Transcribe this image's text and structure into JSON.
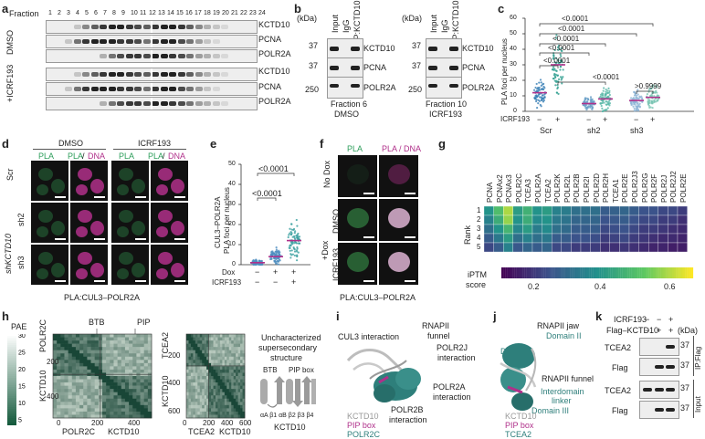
{
  "panel_a": {
    "label": "a",
    "fraction_label": "Fraction",
    "fractions": [
      "1",
      "2",
      "3",
      "4",
      "5",
      "6",
      "7",
      "8",
      "9",
      "10",
      "11",
      "12",
      "13",
      "14",
      "15",
      "16",
      "17",
      "18",
      "19",
      "20",
      "21",
      "22",
      "23",
      "24"
    ],
    "conditions": [
      "DMSO",
      "+ICRF193"
    ],
    "rows": [
      "KCTD10",
      "PCNA",
      "POLR2A"
    ]
  },
  "panel_b": {
    "label": "b",
    "kda": "(kDa)",
    "lanes": [
      "Input",
      "IgG",
      "IP:KCTD10"
    ],
    "markers": [
      "37",
      "37",
      "250"
    ],
    "rows": [
      "KCTD10",
      "PCNA",
      "POLR2A"
    ],
    "left_caption1": "Fraction 6",
    "left_caption2": "DMSO",
    "right_caption1": "Fraction 10",
    "right_caption2": "ICRF193"
  },
  "panel_c": {
    "label": "c",
    "ylabel": "PLA foci per nucleus",
    "yticks": [
      "0",
      "10",
      "20",
      "30",
      "40",
      "50",
      "60"
    ],
    "icrf_label": "ICRF193",
    "icrf_signs": [
      "−",
      "+",
      "−",
      "+",
      "−",
      "+"
    ],
    "groups": [
      "Scr",
      "sh2",
      "sh3"
    ],
    "pvalues": [
      "<0.0001",
      "<0.0001",
      "<0.0001",
      "<0.0001",
      "<0.0001",
      "<0.0001",
      ">0.9999"
    ]
  },
  "panel_d": {
    "label": "d",
    "cond": [
      "DMSO",
      "ICRF193"
    ],
    "cols": [
      "PLA",
      "PLA",
      "/",
      "DNA",
      "PLA",
      "PLA",
      "/",
      "DNA"
    ],
    "rows": [
      "Scr",
      "sh2",
      "sh3"
    ],
    "shgroup": "shKCTD10",
    "caption": "PLA:CUL3–POLR2A"
  },
  "panel_e": {
    "label": "e",
    "ylabel1": "CUL3–POLR2A",
    "ylabel2": "PLA foci per nucleus",
    "yticks": [
      "0",
      "10",
      "20",
      "30",
      "40",
      "50"
    ],
    "dox_label": "Dox",
    "icrf_label": "ICRF193",
    "dox_signs": [
      "−",
      "+",
      "+"
    ],
    "icrf_signs": [
      "−",
      "−",
      "+"
    ],
    "pvalues": [
      "<0.0001",
      "<0.0001"
    ]
  },
  "panel_f": {
    "label": "f",
    "cols": [
      "PLA",
      "PLA / DNA"
    ],
    "rows": [
      "No Dox",
      "DMSO",
      "ICRF193"
    ],
    "plus_dox": "+Dox",
    "caption": "PLA:CUL3–POLR2A"
  },
  "panel_g": {
    "label": "g",
    "ylabel": "Rank",
    "ranks": [
      "1",
      "2",
      "3",
      "4",
      "5"
    ],
    "colorbar_label": "iPTM",
    "colorbar_label2": "score",
    "colorbar_ticks": [
      "0.2",
      "0.4",
      "0.6"
    ]
  },
  "chart_data": {
    "type": "heatmap",
    "columns": [
      "PCNA",
      "PCNAx2",
      "PCNAx3",
      "POLR2C",
      "TCEA3",
      "POLR2A",
      "TCEA2",
      "POLR2K",
      "POLR2L",
      "POLR2B",
      "POLR2I",
      "POLR2D",
      "POLR2H",
      "TCEA1",
      "POLR2E",
      "POLR2J3",
      "POLR2G",
      "POLR2F",
      "POLR2J",
      "POLR2J2",
      "POLR2E"
    ],
    "rows": [
      "1",
      "2",
      "3",
      "4",
      "5"
    ],
    "values": [
      [
        0.38,
        0.48,
        0.58,
        0.4,
        0.45,
        0.38,
        0.4,
        0.34,
        0.33,
        0.3,
        0.3,
        0.3,
        0.26,
        0.27,
        0.28,
        0.26,
        0.24,
        0.24,
        0.22,
        0.22,
        0.2
      ],
      [
        0.34,
        0.44,
        0.56,
        0.38,
        0.44,
        0.36,
        0.38,
        0.32,
        0.31,
        0.28,
        0.28,
        0.28,
        0.24,
        0.25,
        0.26,
        0.24,
        0.22,
        0.22,
        0.2,
        0.2,
        0.18
      ],
      [
        0.3,
        0.38,
        0.46,
        0.35,
        0.4,
        0.33,
        0.36,
        0.3,
        0.29,
        0.26,
        0.26,
        0.26,
        0.22,
        0.23,
        0.24,
        0.22,
        0.2,
        0.2,
        0.19,
        0.18,
        0.17
      ],
      [
        0.26,
        0.32,
        0.4,
        0.3,
        0.34,
        0.3,
        0.32,
        0.26,
        0.26,
        0.24,
        0.24,
        0.23,
        0.2,
        0.21,
        0.22,
        0.2,
        0.19,
        0.18,
        0.17,
        0.17,
        0.16
      ],
      [
        0.22,
        0.26,
        0.34,
        0.25,
        0.28,
        0.26,
        0.28,
        0.22,
        0.22,
        0.2,
        0.2,
        0.2,
        0.18,
        0.18,
        0.19,
        0.18,
        0.17,
        0.16,
        0.16,
        0.15,
        0.15
      ]
    ],
    "vmin": 0.1,
    "vmax": 0.65
  },
  "panel_h": {
    "label": "h",
    "pae_label": "PAE",
    "pae_ticks": [
      "30",
      "25",
      "20",
      "15",
      "10",
      "5"
    ],
    "left_y_top": "POLR2C",
    "left_y_bottom": "KCTD10",
    "left_x": [
      "POLR2C",
      "KCTD10"
    ],
    "left_yticks": [
      "200",
      "400"
    ],
    "left_xticks": [
      "0",
      "200",
      "400"
    ],
    "btb": "BTB",
    "pip": "PIP",
    "right_y_top": "TCEA2",
    "right_y_bottom": "KCTD10",
    "right_x": [
      "TCEA2",
      "KCTD10"
    ],
    "right_yticks": [
      "200",
      "400",
      "600"
    ],
    "right_xticks": [
      "0",
      "200",
      "400",
      "600"
    ],
    "struct_title": [
      "Uncharacterized",
      "supersecondary",
      "structure"
    ],
    "struct_btb": "BTB",
    "struct_pip": "PIP box",
    "struct_greek": "αA β1 αB β2 β3 β4",
    "struct_caption": "KCTD10"
  },
  "panel_i": {
    "label": "i",
    "annotations": [
      "CUL3 interaction",
      "RNAPII",
      "funnel",
      "POLR2J",
      "interaction",
      "POLR2A",
      "interaction",
      "POLR2B",
      "interaction"
    ],
    "legend": [
      "KCTD10",
      "PIP box",
      "POLR2C"
    ]
  },
  "panel_j": {
    "label": "j",
    "annotations": [
      "RNAPII jaw",
      "Domain II",
      "Domain I",
      "RNAPII funnel",
      "Interdomain",
      "linker",
      "Domain III"
    ],
    "legend": [
      "KCTD10",
      "PIP box",
      "TCEA2"
    ]
  },
  "panel_k": {
    "label": "k",
    "icrf_label": "ICRF193",
    "flag_label": "Flag–KCTD10",
    "icrf_signs": [
      "−",
      "−",
      "+"
    ],
    "flag_signs": [
      "−",
      "+",
      "+"
    ],
    "kda": "(kDa)",
    "rows": [
      "TCEA2",
      "Flag",
      "TCEA2",
      "Flag"
    ],
    "markers": [
      "37",
      "37",
      "37",
      "37"
    ],
    "ip_label": "IP:Flag",
    "input_label": "Input"
  },
  "colors": {
    "green": "#2e9e5b",
    "magenta": "#b0308a",
    "heat_low": "#3b0f70",
    "heat_high": "#f0e442",
    "structure_teal": "#2e7f7b"
  }
}
